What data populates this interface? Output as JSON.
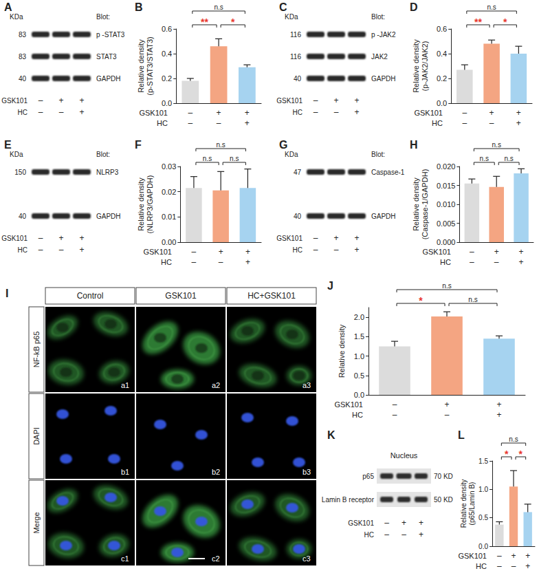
{
  "chart_data": [
    {
      "panel": "B",
      "type": "bar",
      "y_label": "Relative density\n(p-STAT3/STAT3)",
      "categories": [
        null,
        null,
        null
      ],
      "values": [
        0.18,
        0.46,
        0.29
      ],
      "errors": [
        0.02,
        0.06,
        0.02
      ],
      "colors": [
        "#dcdcdc",
        "#f4a582",
        "#a6d3f0"
      ],
      "ylim": [
        0,
        0.6
      ],
      "yticks": [
        {
          "value": 0,
          "label": "0.0"
        },
        0.2,
        0.4,
        0.6
      ],
      "grid": false,
      "treatments": [
        {
          "name": "GSK101",
          "signs": [
            "–",
            "+",
            "+"
          ]
        },
        {
          "name": "HC",
          "signs": [
            "–",
            "–",
            "+"
          ]
        }
      ],
      "annotations": [
        {
          "from": 0,
          "to": 1,
          "text": "**",
          "color": "#e8352c"
        },
        {
          "from": 1,
          "to": 2,
          "text": "*",
          "color": "#e8352c"
        },
        {
          "from": 0,
          "to": 2,
          "text": "n.s",
          "color": "#222222"
        }
      ]
    },
    {
      "panel": "D",
      "type": "bar",
      "y_label": "Relative density\n(p-JAK2/JAK2)",
      "categories": [
        null,
        null,
        null
      ],
      "values": [
        0.27,
        0.48,
        0.4
      ],
      "errors": [
        0.04,
        0.03,
        0.06
      ],
      "colors": [
        "#dcdcdc",
        "#f4a582",
        "#a6d3f0"
      ],
      "ylim": [
        0,
        0.6
      ],
      "yticks": [
        {
          "value": 0,
          "label": "0.0"
        },
        0.2,
        0.4,
        0.6
      ],
      "grid": false,
      "treatments": [
        {
          "name": "GSK101",
          "signs": [
            "–",
            "+",
            "+"
          ]
        },
        {
          "name": "HC",
          "signs": [
            "–",
            "–",
            "+"
          ]
        }
      ],
      "annotations": [
        {
          "from": 0,
          "to": 1,
          "text": "**",
          "color": "#e8352c"
        },
        {
          "from": 1,
          "to": 2,
          "text": "*",
          "color": "#e8352c"
        },
        {
          "from": 0,
          "to": 2,
          "text": "n.s",
          "color": "#222222"
        }
      ]
    },
    {
      "panel": "F",
      "type": "bar",
      "y_label": "Relative density\n(NLRP3/GAPDH)",
      "categories": [
        null,
        null,
        null
      ],
      "values": [
        0.0215,
        0.0205,
        0.0215
      ],
      "errors": [
        0.0045,
        0.0075,
        0.0075
      ],
      "colors": [
        "#dcdcdc",
        "#f4a582",
        "#a6d3f0"
      ],
      "ylim": [
        0,
        0.03
      ],
      "yticks": [
        {
          "value": 0,
          "label": "0.00"
        },
        0.01,
        0.02,
        0.03
      ],
      "grid": false,
      "treatments": [
        {
          "name": "GSK101",
          "signs": [
            "–",
            "+",
            "+"
          ]
        },
        {
          "name": "HC",
          "signs": [
            "–",
            "–",
            "+"
          ]
        }
      ],
      "annotations": [
        {
          "from": 0,
          "to": 1,
          "text": "n.s",
          "color": "#222222"
        },
        {
          "from": 1,
          "to": 2,
          "text": "n.s",
          "color": "#222222"
        },
        {
          "from": 0,
          "to": 2,
          "text": "n.s",
          "color": "#222222"
        }
      ]
    },
    {
      "panel": "H",
      "type": "bar",
      "y_label": "Relative density\n(Caspase-1/GAPDH)",
      "categories": [
        null,
        null,
        null
      ],
      "values": [
        0.0155,
        0.0146,
        0.0182
      ],
      "errors": [
        0.0012,
        0.0028,
        0.0012
      ],
      "colors": [
        "#dcdcdc",
        "#f4a582",
        "#a6d3f0"
      ],
      "ylim": [
        0,
        0.02
      ],
      "yticks": [
        {
          "value": 0,
          "label": "0.000"
        },
        0.005,
        {
          "value": 0.01,
          "label": "0.010"
        },
        0.015,
        {
          "value": 0.02,
          "label": "0.020"
        }
      ],
      "grid": false,
      "treatments": [
        {
          "name": "GSK101",
          "signs": [
            "–",
            "+",
            "+"
          ]
        },
        {
          "name": "HC",
          "signs": [
            "–",
            "–",
            "+"
          ]
        }
      ],
      "annotations": [
        {
          "from": 0,
          "to": 1,
          "text": "n.s",
          "color": "#222222"
        },
        {
          "from": 1,
          "to": 2,
          "text": "n.s",
          "color": "#222222"
        },
        {
          "from": 0,
          "to": 2,
          "text": "n.s",
          "color": "#222222"
        }
      ]
    },
    {
      "panel": "J",
      "type": "bar",
      "y_label": "Relative density",
      "categories": [
        null,
        null,
        null
      ],
      "values": [
        1.25,
        2.02,
        1.45
      ],
      "errors": [
        0.13,
        0.12,
        0.07
      ],
      "colors": [
        "#dcdcdc",
        "#f4a582",
        "#a6d3f0"
      ],
      "ylim": [
        0,
        2.25
      ],
      "yticks": [
        {
          "value": 0,
          "label": "0.0"
        },
        0.5,
        {
          "value": 1,
          "label": "1.0"
        },
        1.5,
        {
          "value": 2,
          "label": "2.0"
        }
      ],
      "grid": false,
      "treatments": [
        {
          "name": "GSK101",
          "signs": [
            "–",
            "+",
            "+"
          ]
        },
        {
          "name": "HC",
          "signs": [
            "–",
            "–",
            "+"
          ]
        }
      ],
      "annotations": [
        {
          "from": 0,
          "to": 1,
          "text": "*",
          "color": "#e8352c"
        },
        {
          "from": 1,
          "to": 2,
          "text": "n.s",
          "color": "#222222"
        },
        {
          "from": 0,
          "to": 2,
          "text": "n.s",
          "color": "#222222"
        }
      ]
    },
    {
      "panel": "L",
      "type": "bar",
      "y_label": "Relative density\n(p65/Lamin B)",
      "categories": [
        null,
        null,
        null
      ],
      "values": [
        0.38,
        1.05,
        0.6
      ],
      "errors": [
        0.05,
        0.28,
        0.14
      ],
      "colors": [
        "#dcdcdc",
        "#f4a582",
        "#a6d3f0"
      ],
      "ylim": [
        0,
        1.5
      ],
      "yticks": [
        {
          "value": 0,
          "label": "0.0"
        },
        0.5,
        {
          "value": 1,
          "label": "1.0"
        },
        1.5
      ],
      "grid": false,
      "treatments": [
        {
          "name": "GSK101",
          "signs": [
            "–",
            "+",
            "+"
          ]
        },
        {
          "name": "HC",
          "signs": [
            "–",
            "–",
            "+"
          ]
        }
      ],
      "annotations": [
        {
          "from": 0,
          "to": 1,
          "text": "*",
          "color": "#e8352c"
        },
        {
          "from": 1,
          "to": 2,
          "text": "*",
          "color": "#e8352c"
        },
        {
          "from": 0,
          "to": 2,
          "text": "n.s",
          "color": "#222222"
        }
      ]
    }
  ],
  "blots": [
    {
      "panel": "A",
      "unit_header": "KDa",
      "blot_header": "Blot:",
      "rows": [
        {
          "kda": "83",
          "label": "p -STAT3"
        },
        {
          "kda": "83",
          "label": "STAT3"
        },
        {
          "kda": "40",
          "label": "GAPDH"
        }
      ],
      "treatments": [
        {
          "name": "GSK101",
          "signs": [
            "–",
            "+",
            "+"
          ]
        },
        {
          "name": "HC",
          "signs": [
            "–",
            "–",
            "+"
          ]
        }
      ]
    },
    {
      "panel": "C",
      "unit_header": "KDa",
      "blot_header": "Blot:",
      "rows": [
        {
          "kda": "116",
          "label": "p -JAK2"
        },
        {
          "kda": "116",
          "label": "JAK2"
        },
        {
          "kda": "40",
          "label": "GAPDH"
        }
      ],
      "treatments": [
        {
          "name": "GSK101",
          "signs": [
            "–",
            "+",
            "+"
          ]
        },
        {
          "name": "HC",
          "signs": [
            "–",
            "–",
            "+"
          ]
        }
      ]
    },
    {
      "panel": "E",
      "unit_header": "KDa",
      "blot_header": "Blot:",
      "rows": [
        {
          "kda": "150",
          "label": "NLRP3"
        },
        {
          "kda": "40",
          "label": "GAPDH"
        }
      ],
      "treatments": [
        {
          "name": "GSK101",
          "signs": [
            "–",
            "+",
            "+"
          ]
        },
        {
          "name": "HC",
          "signs": [
            "–",
            "–",
            "+"
          ]
        }
      ]
    },
    {
      "panel": "G",
      "unit_header": "KDa",
      "blot_header": "Blot:",
      "rows": [
        {
          "kda": "47",
          "label": "Caspase-1"
        },
        {
          "kda": "40",
          "label": "GAPDH"
        }
      ],
      "treatments": [
        {
          "name": "GSK101",
          "signs": [
            "–",
            "+",
            "+"
          ]
        },
        {
          "name": "HC",
          "signs": [
            "–",
            "–",
            "+"
          ]
        }
      ]
    },
    {
      "panel": "K",
      "title": "Nucleus",
      "rows": [
        {
          "label": "p65",
          "size": "70 KD"
        },
        {
          "label": "Lamin B receptor",
          "size": "50 KD"
        }
      ],
      "treatments": [
        {
          "name": "GSK101",
          "signs": [
            "–",
            "+",
            "+"
          ]
        },
        {
          "name": "HC",
          "signs": [
            "–",
            "–",
            "+"
          ]
        }
      ]
    }
  ],
  "images": {
    "panel": "I",
    "columns": [
      "Control",
      "GSK101",
      "HC+GSK101"
    ],
    "rows": [
      {
        "label": "NF-kB p65",
        "cells": [
          "a1",
          "a2",
          "a3"
        ]
      },
      {
        "label": "DAPI",
        "cells": [
          "b1",
          "b2",
          "b3"
        ]
      },
      {
        "label": "Merge",
        "cells": [
          "c1",
          "c2",
          "c3"
        ]
      }
    ]
  }
}
